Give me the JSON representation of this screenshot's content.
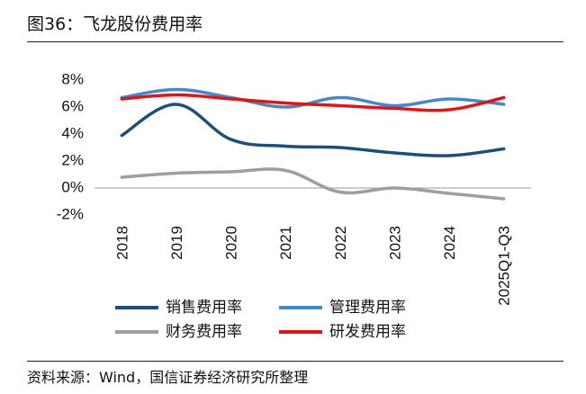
{
  "figure": {
    "title": "图36：飞龙股份费用率",
    "source": "资料来源：Wind，国信证券经济研究所整理"
  },
  "chart_data": {
    "type": "line",
    "title": "飞龙股份费用率",
    "xlabel": "",
    "ylabel": "",
    "categories": [
      "2018",
      "2019",
      "2020",
      "2021",
      "2022",
      "2023",
      "2024",
      "2025Q1-Q3"
    ],
    "yticks": [
      "8%",
      "6%",
      "4%",
      "2%",
      "0%",
      "-2%"
    ],
    "ylim": [
      -2,
      8
    ],
    "grid": false,
    "legend_position": "bottom",
    "series": [
      {
        "name": "销售费用率",
        "color": "#1f4e79",
        "values": [
          3.9,
          6.2,
          3.6,
          3.1,
          3.0,
          2.6,
          2.4,
          2.9
        ]
      },
      {
        "name": "管理费用率",
        "color": "#4a86c5",
        "values": [
          6.7,
          7.3,
          6.7,
          6.0,
          6.7,
          6.1,
          6.6,
          6.2
        ]
      },
      {
        "name": "财务费用率",
        "color": "#9e9e9e",
        "values": [
          0.8,
          1.1,
          1.2,
          1.3,
          -0.3,
          0.0,
          -0.4,
          -0.8
        ]
      },
      {
        "name": "研发费用率",
        "color": "#d7191c",
        "values": [
          6.6,
          6.9,
          6.6,
          6.3,
          6.1,
          5.9,
          5.8,
          6.7
        ]
      }
    ]
  }
}
